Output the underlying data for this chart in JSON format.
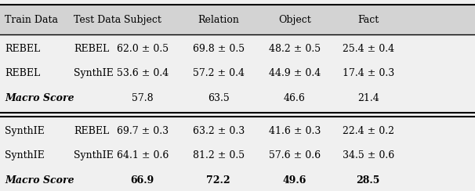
{
  "header": [
    "Train Data",
    "Test Data",
    "Subject",
    "Relation",
    "Object",
    "Fact"
  ],
  "rows": [
    [
      "REBEL",
      "REBEL",
      "62.0 ± 0.5",
      "69.8 ± 0.5",
      "48.2 ± 0.5",
      "25.4 ± 0.4"
    ],
    [
      "REBEL",
      "SynthIE",
      "53.6 ± 0.4",
      "57.2 ± 0.4",
      "44.9 ± 0.4",
      "17.4 ± 0.3"
    ],
    [
      "Macro Score",
      "",
      "57.8",
      "63.5",
      "46.6",
      "21.4"
    ],
    [
      "SynthIE",
      "REBEL",
      "69.7 ± 0.3",
      "63.2 ± 0.3",
      "41.6 ± 0.3",
      "22.4 ± 0.2"
    ],
    [
      "SynthIE",
      "SynthIE",
      "64.1 ± 0.6",
      "81.2 ± 0.5",
      "57.6 ± 0.6",
      "34.5 ± 0.6"
    ],
    [
      "Macro Score",
      "",
      "66.9",
      "72.2",
      "49.6",
      "28.5"
    ]
  ],
  "macro_rows": [
    2,
    5
  ],
  "bold_macro_rows": [
    5
  ],
  "header_bg": "#d3d3d3",
  "bg_color": "#f0f0f0",
  "figsize": [
    6.06,
    2.44
  ],
  "dpi": 100,
  "font_size": 9.0
}
